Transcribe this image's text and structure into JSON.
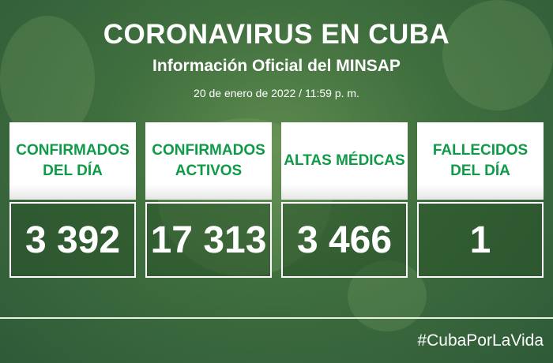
{
  "header": {
    "title": "CORONAVIRUS EN CUBA",
    "subtitle": "Información Oficial del MINSAP",
    "date": "20 de enero de 2022 / 11:59 p. m."
  },
  "cards": [
    {
      "label": "CONFIRMADOS\nDEL DÍA",
      "value": "3 392"
    },
    {
      "label": "CONFIRMADOS\nACTIVOS",
      "value": "17 313"
    },
    {
      "label": "ALTAS MÉDICAS",
      "value": "3 466"
    },
    {
      "label": "FALLECIDOS\nDEL DÍA",
      "value": "1"
    }
  ],
  "footer": {
    "hashtag": "#CubaPorLaVida"
  },
  "colors": {
    "accent": "#0f9a48",
    "background": "#3f6e3e"
  }
}
